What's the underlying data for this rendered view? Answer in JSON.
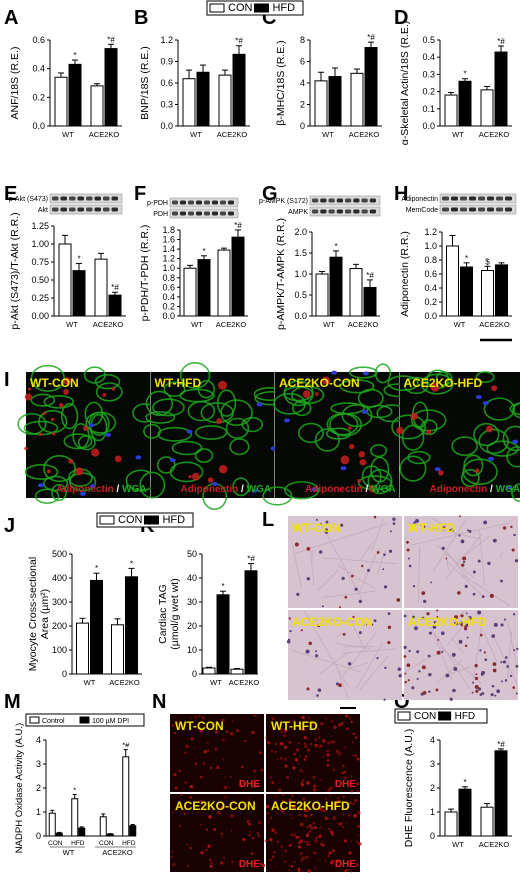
{
  "colors": {
    "con": "#ffffff",
    "hfd": "#000000",
    "green": "#1fa81f",
    "red": "#c8201f",
    "blue": "#2a3bd6",
    "yellow": "#f2e200",
    "dhe": "#b01010",
    "histo": "#d7c3d0"
  },
  "top_legend": {
    "items": [
      "CON",
      "HFD"
    ]
  },
  "mid_legend": {
    "items": [
      "CON",
      "HFD"
    ]
  },
  "o_legend": {
    "items": [
      "CON",
      "HFD"
    ]
  },
  "blots": {
    "E": [
      "p-Akt (S473)",
      "Akt"
    ],
    "F": [
      "p-PDH",
      "PDH"
    ],
    "G": [
      "p-AMPK (S172)",
      "AMPK"
    ],
    "H": [
      "Adiponectin",
      "MemCode"
    ]
  },
  "micrographs": {
    "I": {
      "panels": [
        "WT-CON",
        "WT-HFD",
        "ACE2KO-CON",
        "ACE2KO-HFD"
      ],
      "stain_a": "Adiponectin",
      "sep": " / ",
      "stain_b": "WGA"
    },
    "L": {
      "panels": [
        "WT-CON",
        "WT-HFD",
        "ACE2KO-CON",
        "ACE2KO-HFD"
      ]
    },
    "N": {
      "panels": [
        "WT-CON",
        "WT-HFD",
        "ACE2KO-CON",
        "ACE2KO-HFD"
      ],
      "stain": "DHE"
    }
  },
  "chart_data": [
    {
      "panel": "A",
      "type": "bar",
      "categories": [
        "WT",
        "ACE2KO"
      ],
      "series": [
        {
          "name": "CON",
          "values": [
            0.34,
            0.28
          ]
        },
        {
          "name": "HFD",
          "values": [
            0.43,
            0.54
          ]
        }
      ],
      "errors": [
        [
          0.03,
          0.015
        ],
        [
          0.03,
          0.03
        ]
      ],
      "marks": [
        [
          "",
          ""
        ],
        [
          "*",
          "*#"
        ]
      ],
      "ylabel": "ANF/18S (R.E.)",
      "ylim": [
        0,
        0.6
      ],
      "ticks": [
        "0.0",
        "0.2",
        "0.4",
        "0.6"
      ]
    },
    {
      "panel": "B",
      "type": "bar",
      "categories": [
        "WT",
        "ACE2KO"
      ],
      "series": [
        {
          "name": "CON",
          "values": [
            0.66,
            0.71
          ]
        },
        {
          "name": "HFD",
          "values": [
            0.75,
            1.0
          ]
        }
      ],
      "errors": [
        [
          0.12,
          0.07
        ],
        [
          0.1,
          0.12
        ]
      ],
      "marks": [
        [
          "",
          ""
        ],
        [
          "",
          "*#"
        ]
      ],
      "ylabel": "BNP/18S (R.E.)",
      "ylim": [
        0,
        1.2
      ],
      "ticks": [
        "0.0",
        "0.3",
        "0.6",
        "0.9",
        "1.2"
      ]
    },
    {
      "panel": "C",
      "type": "bar",
      "categories": [
        "WT",
        "ACE2KO"
      ],
      "series": [
        {
          "name": "CON",
          "values": [
            4.2,
            4.9
          ]
        },
        {
          "name": "HFD",
          "values": [
            4.6,
            7.3
          ]
        }
      ],
      "errors": [
        [
          0.8,
          0.4
        ],
        [
          0.8,
          0.5
        ]
      ],
      "marks": [
        [
          "",
          ""
        ],
        [
          "",
          "*#"
        ]
      ],
      "ylabel": "β-MHC/18S (R.E.)",
      "ylim": [
        0,
        8
      ],
      "ticks": [
        "0",
        "2",
        "4",
        "6",
        "8"
      ]
    },
    {
      "panel": "D",
      "type": "bar",
      "categories": [
        "WT",
        "ACE2KO"
      ],
      "series": [
        {
          "name": "CON",
          "values": [
            0.18,
            0.21
          ]
        },
        {
          "name": "HFD",
          "values": [
            0.26,
            0.43
          ]
        }
      ],
      "errors": [
        [
          0.015,
          0.02
        ],
        [
          0.015,
          0.035
        ]
      ],
      "marks": [
        [
          "",
          ""
        ],
        [
          "*",
          "*#"
        ]
      ],
      "ylabel": "α-Skeletal Actin/18S (R.E.)",
      "ylim": [
        0,
        0.5
      ],
      "ticks": [
        "0.0",
        "0.1",
        "0.2",
        "0.3",
        "0.4",
        "0.5"
      ]
    },
    {
      "panel": "E",
      "type": "bar",
      "categories": [
        "WT",
        "ACE2KO"
      ],
      "series": [
        {
          "name": "CON",
          "values": [
            1.0,
            0.79
          ]
        },
        {
          "name": "HFD",
          "values": [
            0.63,
            0.29
          ]
        }
      ],
      "errors": [
        [
          0.12,
          0.08
        ],
        [
          0.1,
          0.04
        ]
      ],
      "marks": [
        [
          "",
          ""
        ],
        [
          "*",
          "*#"
        ]
      ],
      "ylabel": "p-Akt (S473)/T-Akt (R.R.)",
      "ylim": [
        0,
        1.25
      ],
      "ticks": [
        "0.00",
        "0.25",
        "0.50",
        "0.75",
        "1.00",
        "1.25"
      ]
    },
    {
      "panel": "F",
      "type": "bar",
      "categories": [
        "WT",
        "ACE2KO"
      ],
      "series": [
        {
          "name": "CON",
          "values": [
            1.0,
            1.38
          ]
        },
        {
          "name": "HFD",
          "values": [
            1.18,
            1.65
          ]
        }
      ],
      "errors": [
        [
          0.06,
          0.04
        ],
        [
          0.08,
          0.15
        ]
      ],
      "marks": [
        [
          "",
          ""
        ],
        [
          "*",
          "*#"
        ]
      ],
      "ylabel": "p-PDH/T-PDH (R.R.)",
      "ylim": [
        0,
        1.8
      ],
      "ticks": [
        "0.0",
        "0.2",
        "0.4",
        "0.6",
        "0.8",
        "1.0",
        "1.2",
        "1.4",
        "1.6",
        "1.8"
      ]
    },
    {
      "panel": "G",
      "type": "bar",
      "categories": [
        "WT",
        "ACE2KO"
      ],
      "series": [
        {
          "name": "CON",
          "values": [
            1.0,
            1.13
          ]
        },
        {
          "name": "HFD",
          "values": [
            1.4,
            0.68
          ]
        }
      ],
      "errors": [
        [
          0.06,
          0.1
        ],
        [
          0.15,
          0.18
        ]
      ],
      "marks": [
        [
          "",
          ""
        ],
        [
          "*",
          "*#"
        ]
      ],
      "ylabel": "p-AMPK/T-AMPK (R.R.)",
      "ylim": [
        0,
        2.0
      ],
      "ticks": [
        "0.0",
        "0.5",
        "1.0",
        "1.5",
        "2.0"
      ]
    },
    {
      "panel": "H",
      "type": "bar",
      "categories": [
        "WT",
        "ACE2KO"
      ],
      "series": [
        {
          "name": "CON",
          "values": [
            1.0,
            0.65
          ]
        },
        {
          "name": "HFD",
          "values": [
            0.7,
            0.73
          ]
        }
      ],
      "errors": [
        [
          0.15,
          0.06
        ],
        [
          0.06,
          0.03
        ]
      ],
      "marks": [
        [
          "",
          "$"
        ],
        [
          "*",
          ""
        ]
      ],
      "ylabel": "Adiponectin (R.R.)",
      "ylim": [
        0,
        1.2
      ],
      "ticks": [
        "0.0",
        "0.2",
        "0.4",
        "0.6",
        "0.8",
        "1.0",
        "1.2"
      ]
    },
    {
      "panel": "J",
      "type": "bar",
      "categories": [
        "WT",
        "ACE2KO"
      ],
      "series": [
        {
          "name": "CON",
          "values": [
            212,
            205
          ]
        },
        {
          "name": "HFD",
          "values": [
            390,
            405
          ]
        }
      ],
      "errors": [
        [
          20,
          25
        ],
        [
          30,
          35
        ]
      ],
      "marks": [
        [
          "",
          ""
        ],
        [
          "*",
          "*"
        ]
      ],
      "ylabel": "Myocyte Cross-sectional Area (µm²)",
      "ylim": [
        0,
        500
      ],
      "ticks": [
        "0",
        "100",
        "200",
        "300",
        "400",
        "500"
      ]
    },
    {
      "panel": "K",
      "type": "bar",
      "categories": [
        "WT",
        "ACE2KO"
      ],
      "series": [
        {
          "name": "CON",
          "values": [
            2.5,
            2.0
          ]
        },
        {
          "name": "HFD",
          "values": [
            33,
            43
          ]
        }
      ],
      "errors": [
        [
          0.3,
          0.3
        ],
        [
          1.5,
          3
        ]
      ],
      "marks": [
        [
          "",
          ""
        ],
        [
          "*",
          "*#"
        ]
      ],
      "ylabel": "Cardiac TAG (µmol/g wet wt)",
      "ylim": [
        0,
        50
      ],
      "ticks": [
        "0",
        "10",
        "20",
        "30",
        "40",
        "50"
      ]
    },
    {
      "panel": "M",
      "type": "bar",
      "categories": [
        "CON",
        "HFD",
        "CON",
        "HFD"
      ],
      "groups": [
        "WT",
        "ACE2KO"
      ],
      "series": [
        {
          "name": "Control",
          "values": [
            0.95,
            1.55,
            0.8,
            3.3
          ]
        },
        {
          "name": "100 µM DPI",
          "values": [
            0.12,
            0.33,
            0.08,
            0.43
          ]
        }
      ],
      "errors": [
        [
          0.12,
          0.18,
          0.12,
          0.3
        ],
        [
          0.03,
          0.05,
          0.02,
          0.05
        ]
      ],
      "marks": [
        [
          "",
          "*",
          "",
          "*#"
        ],
        [
          "",
          "",
          "",
          ""
        ]
      ],
      "ylabel": "NADPH Oxidase Activity (A.U.)",
      "ylim": [
        0,
        4
      ],
      "ticks": [
        "0",
        "1",
        "2",
        "3",
        "4"
      ]
    },
    {
      "panel": "O",
      "type": "bar",
      "categories": [
        "WT",
        "ACE2KO"
      ],
      "series": [
        {
          "name": "CON",
          "values": [
            1.0,
            1.2
          ]
        },
        {
          "name": "HFD",
          "values": [
            1.95,
            3.55
          ]
        }
      ],
      "errors": [
        [
          0.12,
          0.15
        ],
        [
          0.1,
          0.08
        ]
      ],
      "marks": [
        [
          "",
          ""
        ],
        [
          "*",
          "*#"
        ]
      ],
      "ylabel": "DHE Fluorescence (A.U.)",
      "ylim": [
        0,
        4
      ],
      "ticks": [
        "0",
        "1",
        "2",
        "3",
        "4"
      ]
    }
  ]
}
